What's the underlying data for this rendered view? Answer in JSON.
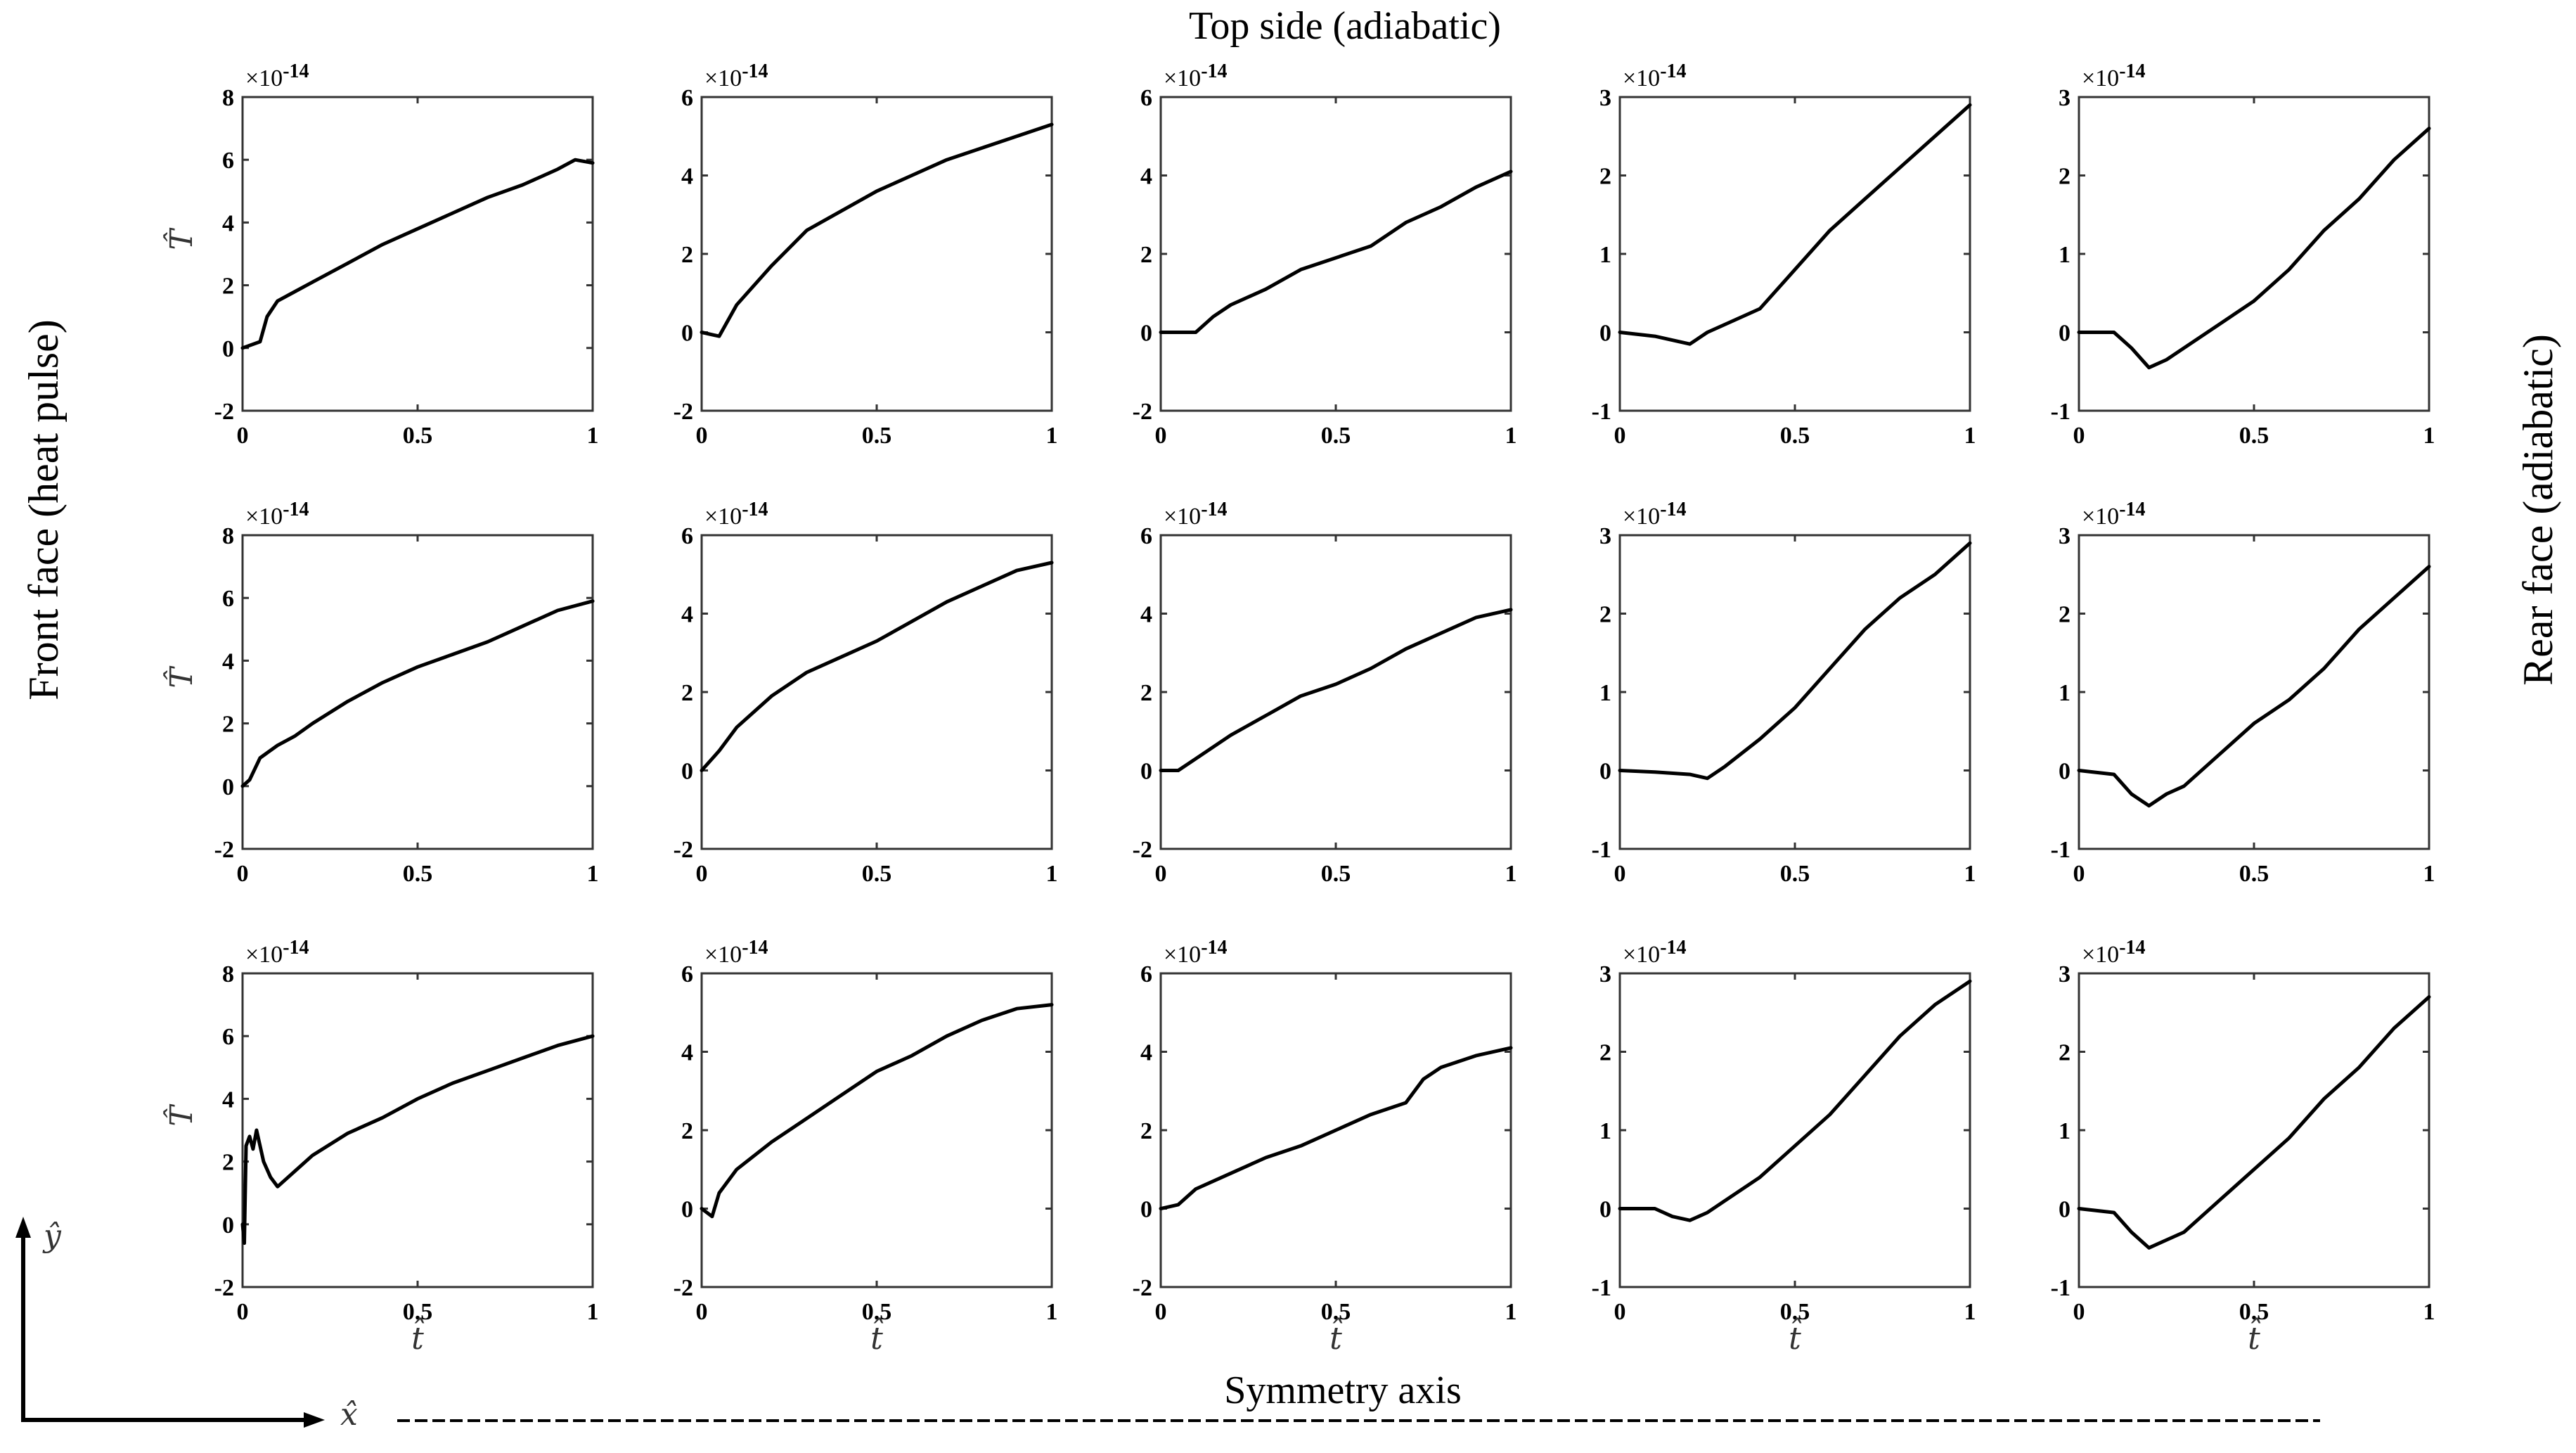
{
  "figure": {
    "top_label": "Top side (adiabatic)",
    "left_label": "Front face (heat pulse)",
    "right_label": "Rear face (adiabatic)",
    "bottom_label": "Symmetry axis",
    "x_arrow_label": "x̂",
    "y_arrow_label": "ŷ"
  },
  "chart_data": {
    "type": "line",
    "rows": 3,
    "cols": 5,
    "xlabel": "t̂",
    "ylabel": "T̂",
    "xticks": [
      0,
      0.5,
      1
    ],
    "xtick_labels": [
      "0",
      "0.5",
      "1"
    ],
    "xlim": [
      0,
      1
    ],
    "exponent_label": "×10",
    "exponent_power": "-14",
    "columns": [
      {
        "ylim": [
          -2,
          8
        ],
        "yticks": [
          -2,
          0,
          2,
          4,
          6,
          8
        ],
        "ytick_labels": [
          "-2",
          "0",
          "2",
          "4",
          "6",
          "8"
        ]
      },
      {
        "ylim": [
          -2,
          6
        ],
        "yticks": [
          -2,
          0,
          2,
          4,
          6
        ],
        "ytick_labels": [
          "-2",
          "0",
          "2",
          "4",
          "6"
        ]
      },
      {
        "ylim": [
          -2,
          6
        ],
        "yticks": [
          -2,
          0,
          2,
          4,
          6
        ],
        "ytick_labels": [
          "-2",
          "0",
          "2",
          "4",
          "6"
        ]
      },
      {
        "ylim": [
          -1,
          3
        ],
        "yticks": [
          -1,
          0,
          1,
          2,
          3
        ],
        "ytick_labels": [
          "-1",
          "0",
          "1",
          "2",
          "3"
        ]
      },
      {
        "ylim": [
          -1,
          3
        ],
        "yticks": [
          -1,
          0,
          1,
          2,
          3
        ],
        "ytick_labels": [
          "-1",
          "0",
          "1",
          "2",
          "3"
        ]
      }
    ],
    "panels": [
      {
        "row": 0,
        "col": 0,
        "x": [
          0,
          0.05,
          0.07,
          0.1,
          0.15,
          0.2,
          0.3,
          0.4,
          0.5,
          0.6,
          0.7,
          0.8,
          0.9,
          0.95,
          1
        ],
        "y": [
          0,
          0.2,
          1,
          1.5,
          1.8,
          2.1,
          2.7,
          3.3,
          3.8,
          4.3,
          4.8,
          5.2,
          5.7,
          6.0,
          5.9
        ]
      },
      {
        "row": 0,
        "col": 1,
        "x": [
          0,
          0.05,
          0.1,
          0.2,
          0.3,
          0.4,
          0.5,
          0.6,
          0.7,
          0.8,
          0.9,
          1
        ],
        "y": [
          0,
          -0.1,
          0.7,
          1.7,
          2.6,
          3.1,
          3.6,
          4.0,
          4.4,
          4.7,
          5.0,
          5.3
        ]
      },
      {
        "row": 0,
        "col": 2,
        "x": [
          0,
          0.05,
          0.1,
          0.15,
          0.2,
          0.3,
          0.4,
          0.5,
          0.6,
          0.7,
          0.8,
          0.9,
          1
        ],
        "y": [
          0,
          0,
          0,
          0.4,
          0.7,
          1.1,
          1.6,
          1.9,
          2.2,
          2.8,
          3.2,
          3.7,
          4.1
        ]
      },
      {
        "row": 0,
        "col": 3,
        "x": [
          0,
          0.1,
          0.2,
          0.25,
          0.3,
          0.4,
          0.5,
          0.6,
          0.7,
          0.8,
          0.9,
          1
        ],
        "y": [
          0,
          -0.05,
          -0.15,
          0,
          0.1,
          0.3,
          0.8,
          1.3,
          1.7,
          2.1,
          2.5,
          2.9
        ]
      },
      {
        "row": 0,
        "col": 4,
        "x": [
          0,
          0.1,
          0.15,
          0.2,
          0.25,
          0.3,
          0.4,
          0.5,
          0.6,
          0.7,
          0.8,
          0.9,
          1
        ],
        "y": [
          0,
          0,
          -0.2,
          -0.45,
          -0.35,
          -0.2,
          0.1,
          0.4,
          0.8,
          1.3,
          1.7,
          2.2,
          2.6
        ]
      },
      {
        "row": 1,
        "col": 0,
        "x": [
          0,
          0.02,
          0.05,
          0.1,
          0.15,
          0.2,
          0.3,
          0.4,
          0.5,
          0.6,
          0.7,
          0.8,
          0.9,
          1
        ],
        "y": [
          0,
          0.2,
          0.9,
          1.3,
          1.6,
          2.0,
          2.7,
          3.3,
          3.8,
          4.2,
          4.6,
          5.1,
          5.6,
          5.9
        ]
      },
      {
        "row": 1,
        "col": 1,
        "x": [
          0,
          0.05,
          0.1,
          0.2,
          0.3,
          0.4,
          0.5,
          0.6,
          0.7,
          0.8,
          0.9,
          1
        ],
        "y": [
          0,
          0.5,
          1.1,
          1.9,
          2.5,
          2.9,
          3.3,
          3.8,
          4.3,
          4.7,
          5.1,
          5.3
        ]
      },
      {
        "row": 1,
        "col": 2,
        "x": [
          0,
          0.05,
          0.1,
          0.2,
          0.3,
          0.4,
          0.5,
          0.6,
          0.7,
          0.8,
          0.9,
          1
        ],
        "y": [
          0,
          0,
          0.3,
          0.9,
          1.4,
          1.9,
          2.2,
          2.6,
          3.1,
          3.5,
          3.9,
          4.1
        ]
      },
      {
        "row": 1,
        "col": 3,
        "x": [
          0,
          0.1,
          0.2,
          0.25,
          0.3,
          0.4,
          0.5,
          0.6,
          0.7,
          0.8,
          0.9,
          1
        ],
        "y": [
          0,
          -0.02,
          -0.05,
          -0.1,
          0.05,
          0.4,
          0.8,
          1.3,
          1.8,
          2.2,
          2.5,
          2.9
        ]
      },
      {
        "row": 1,
        "col": 4,
        "x": [
          0,
          0.1,
          0.15,
          0.2,
          0.25,
          0.3,
          0.4,
          0.5,
          0.6,
          0.7,
          0.8,
          0.9,
          1
        ],
        "y": [
          0,
          -0.05,
          -0.3,
          -0.45,
          -0.3,
          -0.2,
          0.2,
          0.6,
          0.9,
          1.3,
          1.8,
          2.2,
          2.6
        ]
      },
      {
        "row": 2,
        "col": 0,
        "x": [
          0,
          0.005,
          0.01,
          0.02,
          0.03,
          0.04,
          0.06,
          0.08,
          0.1,
          0.15,
          0.2,
          0.3,
          0.4,
          0.5,
          0.6,
          0.7,
          0.8,
          0.9,
          1
        ],
        "y": [
          0,
          -0.6,
          2.5,
          2.8,
          2.4,
          3.0,
          2.0,
          1.5,
          1.2,
          1.7,
          2.2,
          2.9,
          3.4,
          4.0,
          4.5,
          4.9,
          5.3,
          5.7,
          6.0
        ]
      },
      {
        "row": 2,
        "col": 1,
        "x": [
          0,
          0.03,
          0.05,
          0.1,
          0.2,
          0.3,
          0.4,
          0.5,
          0.6,
          0.7,
          0.8,
          0.9,
          1
        ],
        "y": [
          0,
          -0.2,
          0.4,
          1.0,
          1.7,
          2.3,
          2.9,
          3.5,
          3.9,
          4.4,
          4.8,
          5.1,
          5.2
        ]
      },
      {
        "row": 2,
        "col": 2,
        "x": [
          0,
          0.05,
          0.1,
          0.2,
          0.3,
          0.4,
          0.5,
          0.6,
          0.7,
          0.75,
          0.8,
          0.9,
          1
        ],
        "y": [
          0,
          0.1,
          0.5,
          0.9,
          1.3,
          1.6,
          2.0,
          2.4,
          2.7,
          3.3,
          3.6,
          3.9,
          4.1
        ]
      },
      {
        "row": 2,
        "col": 3,
        "x": [
          0,
          0.1,
          0.15,
          0.2,
          0.25,
          0.3,
          0.4,
          0.5,
          0.6,
          0.7,
          0.8,
          0.9,
          1
        ],
        "y": [
          0,
          0,
          -0.1,
          -0.15,
          -0.05,
          0.1,
          0.4,
          0.8,
          1.2,
          1.7,
          2.2,
          2.6,
          2.9
        ]
      },
      {
        "row": 2,
        "col": 4,
        "x": [
          0,
          0.1,
          0.15,
          0.2,
          0.25,
          0.3,
          0.4,
          0.5,
          0.6,
          0.7,
          0.8,
          0.9,
          1
        ],
        "y": [
          0,
          -0.05,
          -0.3,
          -0.5,
          -0.4,
          -0.3,
          0.1,
          0.5,
          0.9,
          1.4,
          1.8,
          2.3,
          2.7
        ]
      }
    ]
  }
}
